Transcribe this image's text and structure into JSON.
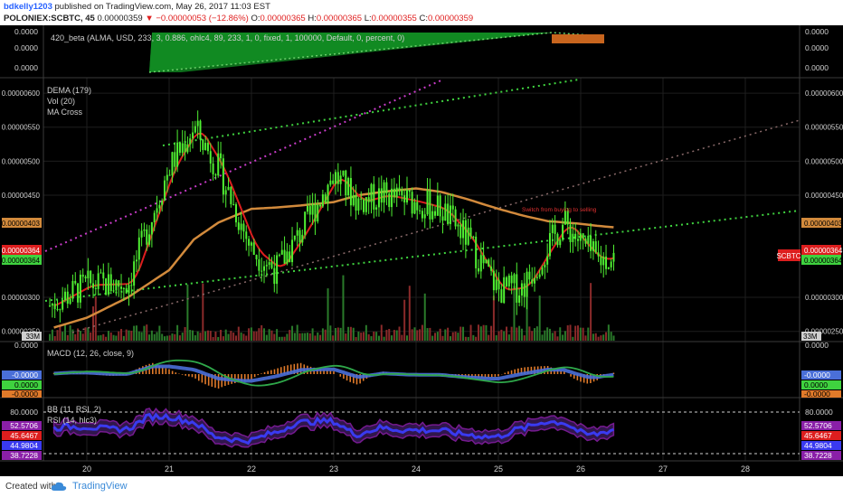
{
  "header": {
    "user": "bdkelly1203",
    "published": "published on TradingView.com, May 26, 2017 11:03 EST",
    "symbol": "POLONIEX:SCBTC, 45",
    "last": "0.00000359",
    "change": "▼ −0.00000053 (−12.86%)",
    "ohlc": {
      "o_label": "O:",
      "o": "0.00000365",
      "h_label": "H:",
      "h": "0.00000365",
      "l_label": "L:",
      "l": "0.00000355",
      "c_label": "C:",
      "c": "0.00000359"
    }
  },
  "footer": {
    "created": "Created with",
    "brand": "TradingView"
  },
  "panes": {
    "p1": {
      "label": "420_beta (ALMA, USD, 233, 3, 0.886, ohlc4, 89, 233, 1, 0, fixed, 1, 100000, Default, 0, percent, 0)",
      "ticks": [
        "0.0000",
        "0.0000",
        "0.0000"
      ]
    },
    "main": {
      "legend": [
        "DEMA (179)",
        "Vol (20)",
        "MA Cross"
      ],
      "ticks": [
        "0.00000600",
        "0.00000550",
        "0.00000500",
        "0.00000450",
        "0.00000300",
        "0.00000250"
      ],
      "tags": {
        "dema": "0.00000403",
        "price_red": "0.00000364",
        "price_green": "0.00000364",
        "symbol": "SCBTC"
      },
      "annotation": "Switch from buying to selling",
      "vol_tag": "33M"
    },
    "macd": {
      "label": "MACD (12, 26, close, 9)",
      "ticks_left": [
        "0.0000",
        "-0.0000",
        "0.0000",
        "-0.0000"
      ],
      "tags_right": [
        "0.0000",
        "-0.0000",
        "0.0000",
        "-0.0000"
      ]
    },
    "rsi": {
      "label1": "BB (11, RSI, 2)",
      "label2": "RSI (14, hlc3)",
      "ticks": [
        "80.0000",
        "52.5706",
        "45.6467",
        "44.9804",
        "38.7228"
      ]
    }
  },
  "xaxis": {
    "ticks": [
      "20",
      "21",
      "22",
      "23",
      "24",
      "25",
      "26",
      "27",
      "28"
    ]
  },
  "colors": {
    "bg": "#000000",
    "candle": "#4ff032",
    "dema": "#d28a3c",
    "ma_red": "#dd1e1e",
    "trend_green": "#3fd23f",
    "trend_magenta": "#c83cc8",
    "macd_hist": "#e07a2a",
    "macd_signal": "#2fa84a",
    "macd_line": "#4a6fd8",
    "rsi": "#3a3af0",
    "bb": "#8a1fa8"
  },
  "chart_data": {
    "type": "line",
    "title": "POLONIEX:SCBTC, 45",
    "x_days": [
      19.5,
      20,
      20.5,
      21,
      21.3,
      21.6,
      22,
      22.3,
      22.6,
      23,
      23.3,
      23.6,
      24,
      24.3,
      24.6,
      25,
      25.3,
      25.6,
      25.8,
      26,
      26.2,
      26.4
    ],
    "series": [
      {
        "name": "SCBTC",
        "values": [
          2.85e-06,
          3.18e-06,
          3.2e-06,
          4.9e-06,
          5.5e-06,
          4.9e-06,
          3.7e-06,
          3.4e-06,
          3.95e-06,
          4.8e-06,
          4.4e-06,
          4.5e-06,
          4.4e-06,
          4.3e-06,
          3.9e-06,
          3.1e-06,
          3.15e-06,
          3.75e-06,
          4.1e-06,
          3.8e-06,
          3.55e-06,
          3.59e-06
        ]
      },
      {
        "name": "DEMA (179)",
        "values": [
          2.52e-06,
          2.7e-06,
          3e-06,
          3.4e-06,
          3.85e-06,
          4.1e-06,
          4.3e-06,
          4.32e-06,
          4.35e-06,
          4.4e-06,
          4.5e-06,
          4.55e-06,
          4.6e-06,
          4.55e-06,
          4.45e-06,
          4.3e-06,
          4.2e-06,
          4.12e-06,
          4.1e-06,
          4.08e-06,
          4.05e-06,
          4.03e-06
        ]
      }
    ],
    "ylim": [
      2.35e-06,
      6.2e-06
    ]
  }
}
